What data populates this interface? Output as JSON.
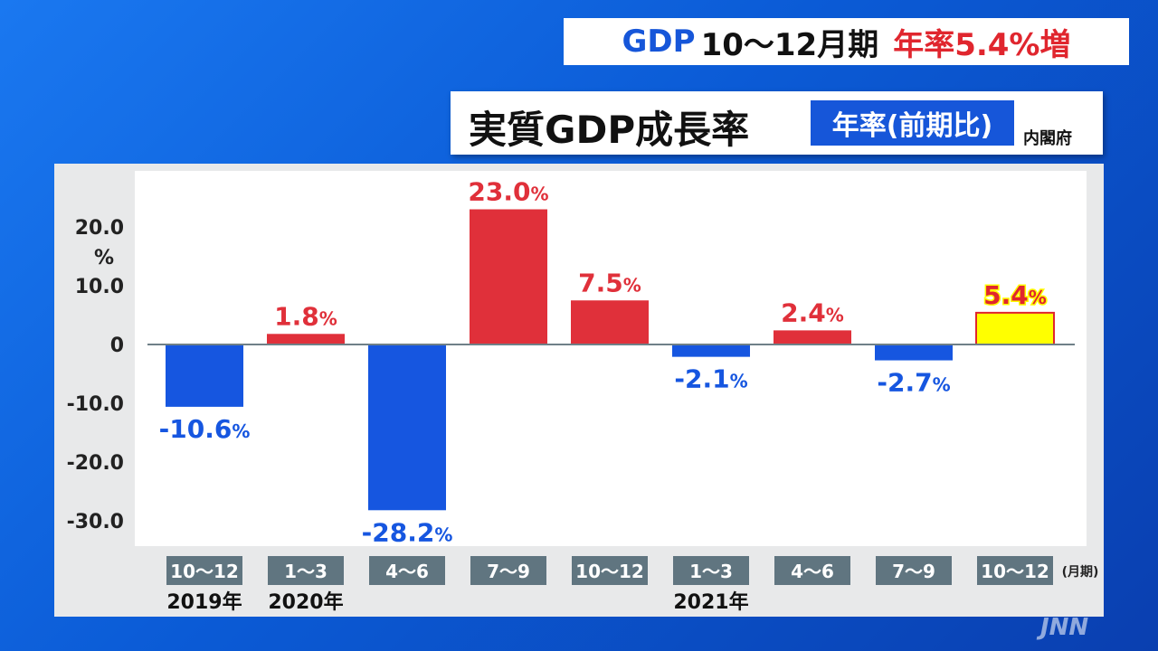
{
  "headline": {
    "gdp": "GDP",
    "period": "10〜12月期",
    "rate": "年率5.4%増"
  },
  "title": {
    "main": "実質GDP成長率",
    "badge": "年率(前期比)",
    "source": "内閣府"
  },
  "logo": "JNN",
  "colors": {
    "positive": "#e0303a",
    "negative": "#1656e0",
    "highlight": "#ffff00",
    "highlight_text": "#e0262e",
    "category_box": "#607580"
  },
  "chart_data": {
    "type": "bar",
    "categories": [
      "10〜12",
      "1〜3",
      "4〜6",
      "7〜9",
      "10〜12",
      "1〜3",
      "4〜6",
      "7〜9",
      "10〜12"
    ],
    "values": [
      -10.6,
      1.8,
      -28.2,
      23.0,
      7.5,
      -2.1,
      2.4,
      -2.7,
      5.4
    ],
    "value_labels": [
      "-10.6",
      "1.8",
      "-28.2",
      "23.0",
      "7.5",
      "-2.1",
      "2.4",
      "-2.7",
      "5.4"
    ],
    "value_suffix": "%",
    "highlight_index": 8,
    "year_labels": [
      {
        "index": 0,
        "text": "2019年"
      },
      {
        "index": 1,
        "text": "2020年"
      },
      {
        "index": 5,
        "text": "2021年"
      }
    ],
    "x_unit": "(月期)",
    "y_unit": "%",
    "y_ticks": [
      {
        "value": 20,
        "label": "20.0"
      },
      {
        "value": 10,
        "label": "10.0"
      },
      {
        "value": 0,
        "label": "0"
      },
      {
        "value": -10,
        "label": "-10.0"
      },
      {
        "value": -20,
        "label": "-20.0"
      },
      {
        "value": -30,
        "label": "-30.0"
      }
    ],
    "ylim": [
      -35,
      28
    ],
    "grid": false
  }
}
